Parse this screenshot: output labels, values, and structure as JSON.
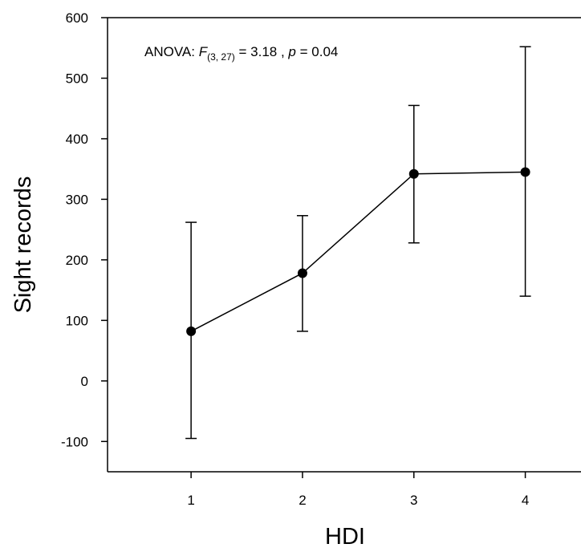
{
  "chart_data": {
    "type": "line",
    "title": "",
    "xlabel": "HDI",
    "ylabel": "Sight records",
    "x": [
      1,
      2,
      3,
      4
    ],
    "xticks": [
      "1",
      "2",
      "3",
      "4"
    ],
    "xlim": [
      0.25,
      4.5
    ],
    "ylim": [
      -150,
      600
    ],
    "yticks": [
      "-100",
      "0",
      "100",
      "200",
      "300",
      "400",
      "500",
      "600"
    ],
    "series": [
      {
        "values": [
          82,
          178,
          342,
          345
        ],
        "error_upper": [
          262,
          273,
          455,
          552
        ],
        "error_lower": [
          -95,
          82,
          228,
          140
        ]
      }
    ],
    "grid": false,
    "legend": "none",
    "annotation": {
      "prefix": "ANOVA: ",
      "f_symbol": "F",
      "f_subscript": "(3, 27)",
      "f_value": " = 3.18 , ",
      "p_symbol": "p",
      "p_value": " = 0.04"
    },
    "colors": {
      "line": "#000000",
      "marker": "#000000"
    }
  }
}
